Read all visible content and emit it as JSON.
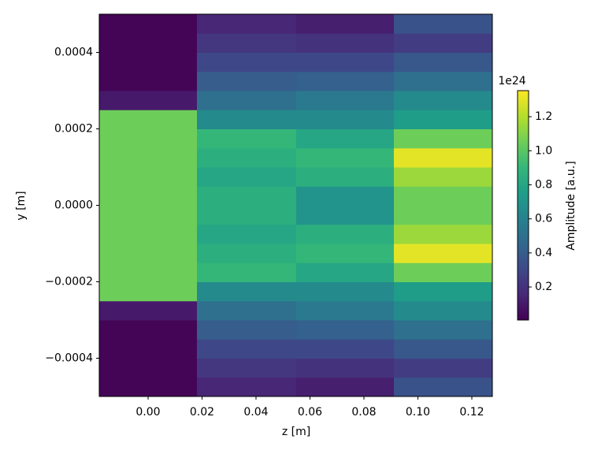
{
  "chart_data": {
    "type": "heatmap",
    "xlabel": "z [m]",
    "ylabel": "y [m]",
    "colorbar_label": "Amplitude [a.u.]",
    "colorbar_offset": "1e24",
    "colormap": "viridis",
    "x_edges": [
      -0.0181,
      0.0181,
      0.0549,
      0.0911,
      0.1276
    ],
    "y_edges": [
      -0.0005,
      -0.00045,
      -0.0004,
      -0.00035,
      -0.0003,
      -0.00025,
      -0.0002,
      -0.00015,
      -0.0001,
      -5e-05,
      0,
      5e-05,
      0.0001,
      0.00015,
      0.0002,
      0.00025,
      0.0003,
      0.00035,
      0.0004,
      0.00045,
      0.0005
    ],
    "values": [
      [
        0.02,
        0.02,
        0.02,
        0.02,
        0.1,
        1.05,
        1.05,
        1.05,
        1.05,
        1.05,
        1.05,
        1.05,
        1.05,
        1.05,
        1.05,
        0.1,
        0.02,
        0.02,
        0.02,
        0.02
      ],
      [
        0.15,
        0.22,
        0.3,
        0.4,
        0.5,
        0.65,
        0.9,
        0.85,
        0.8,
        0.85,
        0.85,
        0.8,
        0.85,
        0.9,
        0.65,
        0.5,
        0.4,
        0.3,
        0.22,
        0.15
      ],
      [
        0.12,
        0.2,
        0.3,
        0.42,
        0.55,
        0.65,
        0.8,
        0.9,
        0.85,
        0.7,
        0.7,
        0.85,
        0.9,
        0.8,
        0.65,
        0.55,
        0.42,
        0.3,
        0.2,
        0.12
      ],
      [
        0.35,
        0.25,
        0.38,
        0.5,
        0.65,
        0.75,
        1.05,
        1.3,
        1.15,
        1.05,
        1.05,
        1.15,
        1.3,
        1.05,
        0.75,
        0.65,
        0.5,
        0.38,
        0.25,
        0.35
      ]
    ],
    "xlim": [
      -0.0181,
      0.1276
    ],
    "ylim": [
      -0.0005,
      0.0005
    ],
    "xticks": [
      {
        "value": 0,
        "label": "0.00"
      },
      {
        "value": 0.02,
        "label": "0.02"
      },
      {
        "value": 0.04,
        "label": "0.04"
      },
      {
        "value": 0.06,
        "label": "0.06"
      },
      {
        "value": 0.08,
        "label": "0.08"
      },
      {
        "value": 0.1,
        "label": "0.10"
      },
      {
        "value": 0.12,
        "label": "0.12"
      }
    ],
    "yticks": [
      {
        "value": -0.0004,
        "label": "−0.0004"
      },
      {
        "value": -0.0002,
        "label": "−0.0002"
      },
      {
        "value": 0,
        "label": "0.0000"
      },
      0.0002,
      0.0004
    ],
    "clim": [
      0.006,
      1.353
    ],
    "cticks": [
      0.2,
      0.4,
      0.6,
      0.8,
      {
        "value": 1,
        "label": "1.0"
      },
      1.2
    ]
  }
}
